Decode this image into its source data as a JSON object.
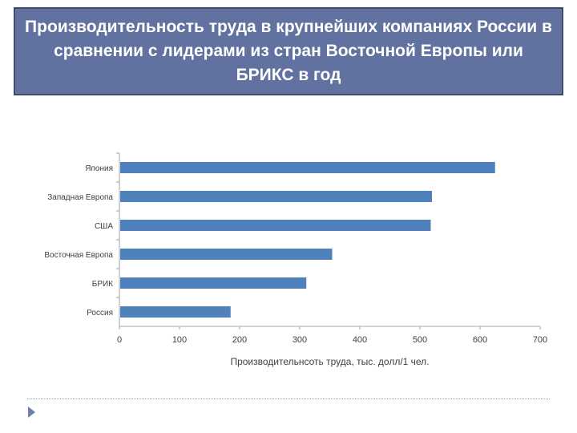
{
  "slide": {
    "title": "Производительность труда в крупнейших компаниях России в сравнении с лидерами из стран Восточной Европы или БРИКС в год"
  },
  "colors": {
    "title_bg": "#6272a0",
    "bar": "#4f81bd",
    "axis": "#a6a6a6"
  },
  "chart_data": {
    "type": "bar",
    "orientation": "horizontal",
    "categories": [
      "Япония",
      "Западная Европа",
      "США",
      "Восточная Европа",
      "БРИК",
      "Россия"
    ],
    "values": [
      625,
      520,
      518,
      354,
      311,
      185
    ],
    "xlabel": "Производительнсоть труда, тыс. долл/1 чел.",
    "ylabel": "",
    "xlim": [
      0,
      700
    ],
    "xticks": [
      0,
      100,
      200,
      300,
      400,
      500,
      600,
      700
    ],
    "grid": false,
    "legend": "none"
  },
  "icons": {
    "footer": "triangle-arrow-icon"
  }
}
